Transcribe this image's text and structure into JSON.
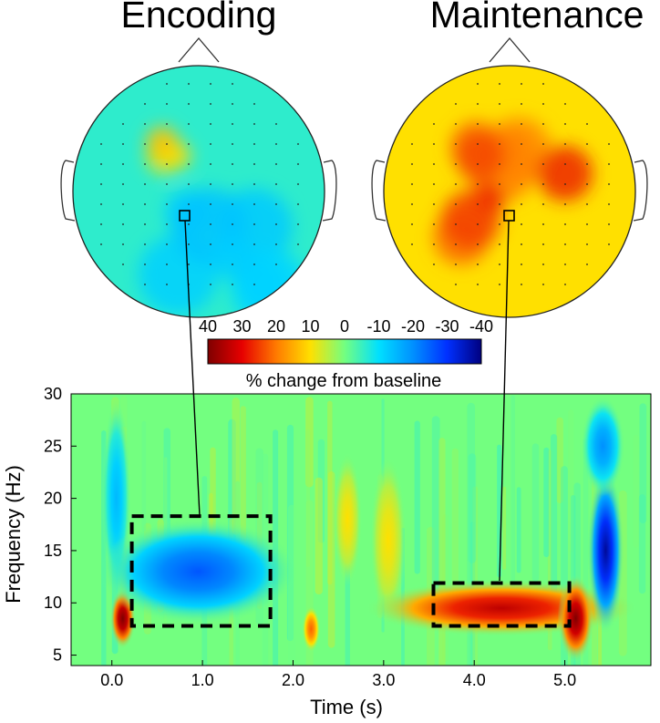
{
  "topomaps": [
    {
      "title": "Encoding",
      "mean_change": -6,
      "features": [
        {
          "kind": "increase",
          "value": 15,
          "label": ""
        },
        {
          "kind": "decrease",
          "value": -18,
          "label": ""
        }
      ]
    },
    {
      "title": "Maintenance",
      "mean_change": 10,
      "features": [
        {
          "kind": "increase",
          "value": 28,
          "label": ""
        }
      ]
    }
  ],
  "colorbar": {
    "ticks": [
      "40",
      "30",
      "20",
      "10",
      "0",
      "-10",
      "-20",
      "-30",
      "-40"
    ],
    "label": "% change from baseline",
    "range": [
      40,
      -40
    ],
    "stops": [
      {
        "v": 40,
        "color": "#7f0000"
      },
      {
        "v": 30,
        "color": "#e60000"
      },
      {
        "v": 20,
        "color": "#ff7a00"
      },
      {
        "v": 10,
        "color": "#ffe000"
      },
      {
        "v": 0,
        "color": "#73ff80"
      },
      {
        "v": -10,
        "color": "#00e0ff"
      },
      {
        "v": -20,
        "color": "#0090ff"
      },
      {
        "v": -30,
        "color": "#0030ff"
      },
      {
        "v": -40,
        "color": "#000080"
      }
    ]
  },
  "chart_data": {
    "type": "heatmap",
    "xlabel": "Time (s)",
    "ylabel": "Frequency (Hz)",
    "xlim": [
      -0.45,
      5.95
    ],
    "ylim": [
      4,
      30
    ],
    "xticks": [
      {
        "v": 0.0,
        "label": "0.0"
      },
      {
        "v": 1.0,
        "label": "1.0"
      },
      {
        "v": 2.0,
        "label": "2.0"
      },
      {
        "v": 3.0,
        "label": "3.0"
      },
      {
        "v": 4.0,
        "label": "4.0"
      },
      {
        "v": 5.0,
        "label": "5.0"
      }
    ],
    "yticks": [
      {
        "v": 5,
        "label": "5"
      },
      {
        "v": 10,
        "label": "10"
      },
      {
        "v": 15,
        "label": "15"
      },
      {
        "v": 20,
        "label": "20"
      },
      {
        "v": 25,
        "label": "25"
      },
      {
        "v": 30,
        "label": "30"
      }
    ],
    "background_change": 0,
    "blobs": [
      {
        "t": 0.12,
        "f": 8.5,
        "st": 0.07,
        "sf": 1.8,
        "v": 42
      },
      {
        "t": 0.05,
        "f": 20,
        "st": 0.08,
        "sf": 6,
        "v": -15
      },
      {
        "t": 0.95,
        "f": 13,
        "st": 0.55,
        "sf": 3.2,
        "v": -26
      },
      {
        "t": 2.2,
        "f": 7.5,
        "st": 0.05,
        "sf": 1.4,
        "v": 22
      },
      {
        "t": 2.6,
        "f": 18,
        "st": 0.08,
        "sf": 4.0,
        "v": 10
      },
      {
        "t": 3.05,
        "f": 16,
        "st": 0.1,
        "sf": 5.0,
        "v": 10
      },
      {
        "t": 4.3,
        "f": 9.5,
        "st": 0.75,
        "sf": 1.7,
        "v": 34
      },
      {
        "t": 5.12,
        "f": 8.5,
        "st": 0.1,
        "sf": 2.6,
        "v": 40
      },
      {
        "t": 5.45,
        "f": 15,
        "st": 0.1,
        "sf": 5.0,
        "v": -38
      },
      {
        "t": 5.42,
        "f": 25,
        "st": 0.12,
        "sf": 3.0,
        "v": -20
      }
    ],
    "regions_of_interest": [
      {
        "name": "Encoding",
        "t_start": 0.22,
        "t_end": 1.75,
        "f_low": 7.8,
        "f_high": 18.3
      },
      {
        "name": "Maintenance",
        "t_start": 3.55,
        "t_end": 5.05,
        "f_low": 7.8,
        "f_high": 11.9
      }
    ]
  }
}
